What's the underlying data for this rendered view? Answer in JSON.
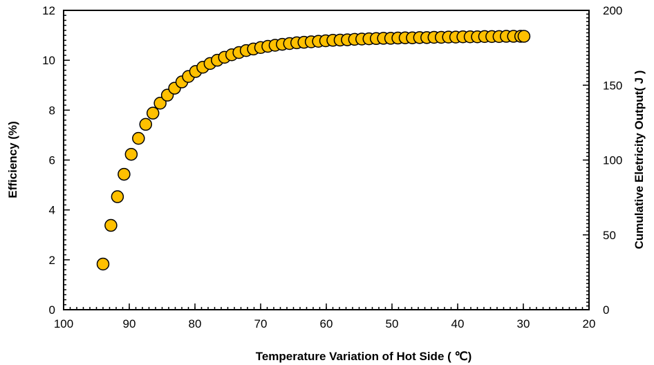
{
  "chart_data": {
    "type": "scatter",
    "xlabel": "Temperature Variation of Hot Side ( ℃)",
    "ylabel": "Efficiency (%)",
    "y2label": "Cumulative Eletricity Output( J )",
    "xlim": [
      100,
      20
    ],
    "x_reversed": true,
    "ylim": [
      0,
      12
    ],
    "y2lim": [
      0,
      200
    ],
    "x_ticks": [
      "100",
      "90",
      "80",
      "70",
      "60",
      "50",
      "40",
      "30",
      "20"
    ],
    "y_ticks": [
      "0",
      "2",
      "4",
      "6",
      "8",
      "10",
      "12"
    ],
    "y2_ticks": [
      "0",
      "50",
      "100",
      "150",
      "200"
    ],
    "grid": false,
    "legend": "none",
    "marker_color": "#FFC000",
    "marker_edge_color": "#000000",
    "series": [
      {
        "x": [
          94,
          92.8,
          91.8,
          90.8,
          89.7,
          88.6,
          87.5,
          86.4,
          85.3,
          84.2,
          83.1,
          82.0,
          81.0,
          79.9,
          78.8,
          77.7,
          76.6,
          75.5,
          74.4,
          73.3,
          72.2,
          71.1,
          70.0,
          68.9,
          67.8,
          66.7,
          65.6,
          64.5,
          63.4,
          62.3,
          61.2,
          60.1,
          59.0,
          57.9,
          56.8,
          55.7,
          54.6,
          53.5,
          52.4,
          51.3,
          50.2,
          49.1,
          48.0,
          46.9,
          45.8,
          44.7,
          43.6,
          42.5,
          41.4,
          40.3,
          39.2,
          38.1,
          37.0,
          35.9,
          34.8,
          33.7,
          32.6,
          31.5,
          30.4,
          29.9
        ],
        "y": [
          1.83,
          3.38,
          4.53,
          5.43,
          6.23,
          6.87,
          7.43,
          7.88,
          8.28,
          8.6,
          8.88,
          9.13,
          9.35,
          9.55,
          9.72,
          9.87,
          10.0,
          10.12,
          10.22,
          10.31,
          10.39,
          10.45,
          10.51,
          10.56,
          10.6,
          10.64,
          10.67,
          10.7,
          10.72,
          10.74,
          10.76,
          10.78,
          10.8,
          10.81,
          10.82,
          10.84,
          10.85,
          10.86,
          10.87,
          10.88,
          10.88,
          10.89,
          10.9,
          10.9,
          10.91,
          10.91,
          10.92,
          10.92,
          10.93,
          10.93,
          10.94,
          10.94,
          10.94,
          10.95,
          10.95,
          10.95,
          10.96,
          10.96,
          10.96,
          10.96
        ]
      }
    ]
  }
}
